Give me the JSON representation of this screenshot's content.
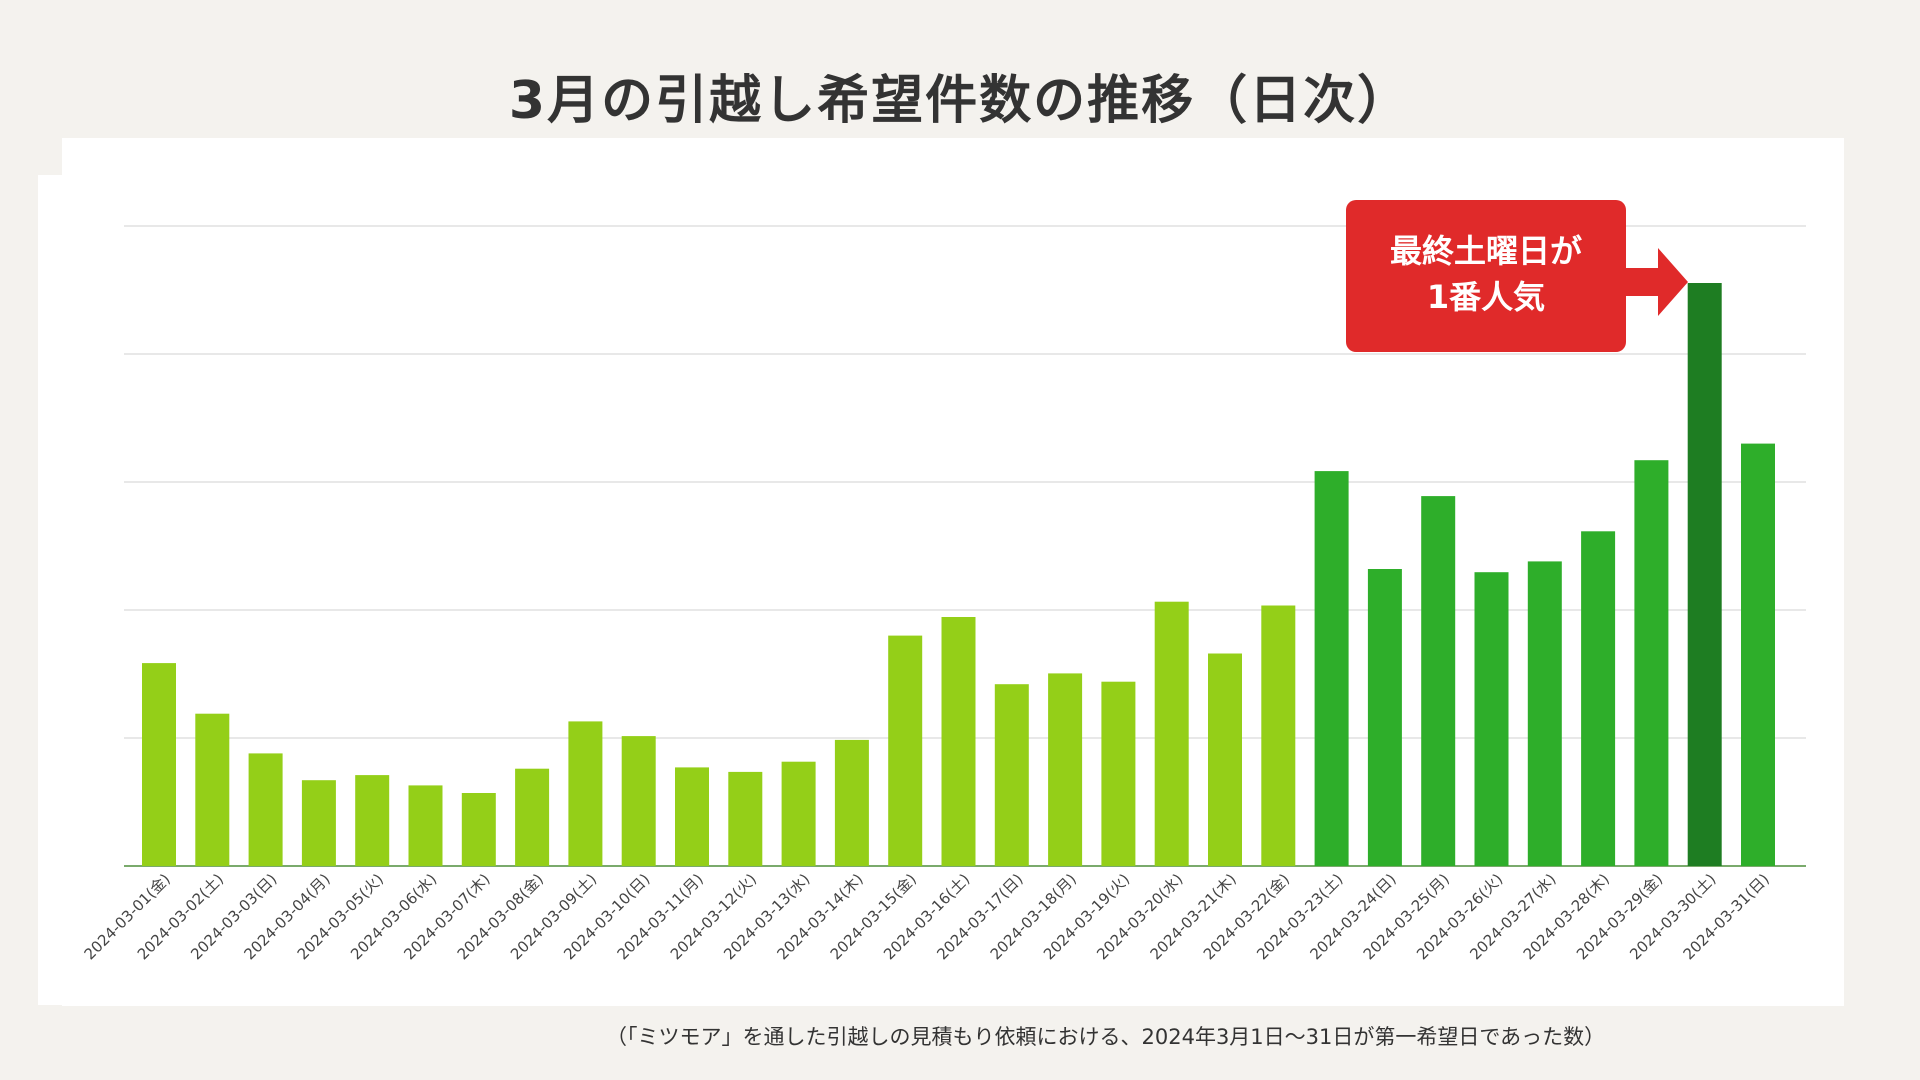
{
  "colors": {
    "bar_normal": "#94cf18",
    "bar_late": "#2eae2a",
    "bar_peak": "#1e7d22",
    "callout": "#e02a2a",
    "grid": "#d9d9d9",
    "baseline": "#4e8e3c"
  },
  "callout": {
    "line1": "最終土曜日が",
    "line2": "1番人気"
  },
  "footnote": "（「ミツモア」を通した引越しの見積もり依頼における、2024年3月1日〜31日が第一希望日であった数）",
  "chart_data": {
    "type": "bar",
    "title": "3月の引越し希望件数の推移（日次）",
    "xlabel": "",
    "ylabel": "",
    "ylim": [
      0,
      100
    ],
    "y_ticks_shown": false,
    "gridlines": [
      20,
      40,
      60,
      80,
      100
    ],
    "categories": [
      "2024-03-01(金)",
      "2024-03-02(土)",
      "2024-03-03(日)",
      "2024-03-04(月)",
      "2024-03-05(火)",
      "2024-03-06(水)",
      "2024-03-07(木)",
      "2024-03-08(金)",
      "2024-03-09(土)",
      "2024-03-10(日)",
      "2024-03-11(月)",
      "2024-03-12(火)",
      "2024-03-13(水)",
      "2024-03-14(木)",
      "2024-03-15(金)",
      "2024-03-16(土)",
      "2024-03-17(日)",
      "2024-03-18(月)",
      "2024-03-19(火)",
      "2024-03-20(水)",
      "2024-03-21(木)",
      "2024-03-22(金)",
      "2024-03-23(土)",
      "2024-03-24(日)",
      "2024-03-25(月)",
      "2024-03-26(火)",
      "2024-03-27(水)",
      "2024-03-28(木)",
      "2024-03-29(金)",
      "2024-03-30(土)",
      "2024-03-31(日)"
    ],
    "values": [
      31.7,
      23.8,
      17.6,
      13.4,
      14.2,
      12.6,
      11.4,
      15.2,
      22.6,
      20.3,
      15.4,
      14.7,
      16.3,
      19.7,
      36.0,
      38.9,
      28.4,
      30.1,
      28.8,
      41.3,
      33.2,
      40.7,
      61.7,
      46.4,
      57.8,
      45.9,
      47.6,
      52.3,
      63.4,
      91.1,
      66.0
    ],
    "bar_groups": [
      "normal",
      "normal",
      "normal",
      "normal",
      "normal",
      "normal",
      "normal",
      "normal",
      "normal",
      "normal",
      "normal",
      "normal",
      "normal",
      "normal",
      "normal",
      "normal",
      "normal",
      "normal",
      "normal",
      "normal",
      "normal",
      "normal",
      "late",
      "late",
      "late",
      "late",
      "late",
      "late",
      "late",
      "peak",
      "late"
    ],
    "annotation": "最終土曜日が1番人気"
  }
}
